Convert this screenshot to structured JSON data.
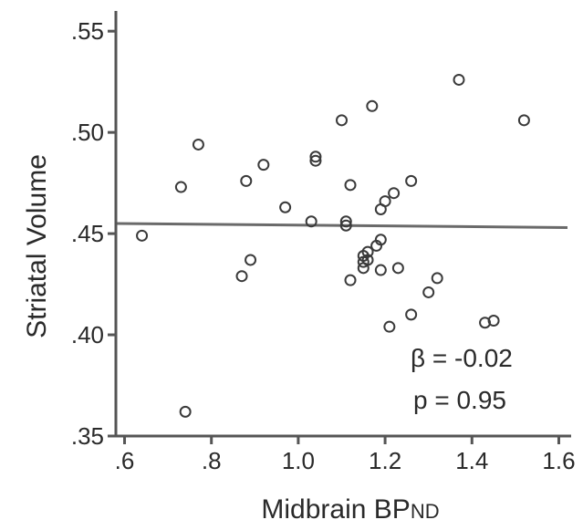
{
  "chart_data": {
    "type": "scatter",
    "title": "",
    "xlabel": "Midbrain BP",
    "xlabel_subscript": "ND",
    "ylabel": "Striatal Volume",
    "xlim": [
      0.58,
      1.62
    ],
    "ylim": [
      0.35,
      0.56
    ],
    "xticks": [
      0.6,
      0.8,
      1.0,
      1.2,
      1.4,
      1.6
    ],
    "xtick_labels": [
      ".6",
      ".8",
      "1.0",
      "1.2",
      "1.4",
      "1.6"
    ],
    "yticks": [
      0.35,
      0.4,
      0.45,
      0.5,
      0.55
    ],
    "ytick_labels": [
      ".35",
      ".40",
      ".45",
      ".50",
      ".55"
    ],
    "grid": false,
    "colors": {
      "points": "#3a3a3a",
      "axes": "#555555",
      "fit": "#6a6a6a"
    },
    "fit_line": {
      "x": [
        0.58,
        1.62
      ],
      "y": [
        0.455,
        0.453
      ]
    },
    "annotations": {
      "beta": "β = -0.02",
      "p": "p = 0.95"
    },
    "points": [
      {
        "x": 0.64,
        "y": 0.449
      },
      {
        "x": 0.73,
        "y": 0.473
      },
      {
        "x": 0.74,
        "y": 0.362
      },
      {
        "x": 0.77,
        "y": 0.494
      },
      {
        "x": 0.87,
        "y": 0.429
      },
      {
        "x": 0.88,
        "y": 0.476
      },
      {
        "x": 0.89,
        "y": 0.437
      },
      {
        "x": 0.92,
        "y": 0.484
      },
      {
        "x": 0.97,
        "y": 0.463
      },
      {
        "x": 1.03,
        "y": 0.456
      },
      {
        "x": 1.04,
        "y": 0.486
      },
      {
        "x": 1.04,
        "y": 0.488
      },
      {
        "x": 1.1,
        "y": 0.506
      },
      {
        "x": 1.11,
        "y": 0.456
      },
      {
        "x": 1.11,
        "y": 0.454
      },
      {
        "x": 1.12,
        "y": 0.474
      },
      {
        "x": 1.12,
        "y": 0.427
      },
      {
        "x": 1.15,
        "y": 0.433
      },
      {
        "x": 1.15,
        "y": 0.436
      },
      {
        "x": 1.15,
        "y": 0.439
      },
      {
        "x": 1.16,
        "y": 0.437
      },
      {
        "x": 1.16,
        "y": 0.441
      },
      {
        "x": 1.17,
        "y": 0.513
      },
      {
        "x": 1.18,
        "y": 0.444
      },
      {
        "x": 1.19,
        "y": 0.447
      },
      {
        "x": 1.19,
        "y": 0.432
      },
      {
        "x": 1.19,
        "y": 0.462
      },
      {
        "x": 1.2,
        "y": 0.466
      },
      {
        "x": 1.21,
        "y": 0.404
      },
      {
        "x": 1.22,
        "y": 0.47
      },
      {
        "x": 1.23,
        "y": 0.433
      },
      {
        "x": 1.26,
        "y": 0.476
      },
      {
        "x": 1.26,
        "y": 0.41
      },
      {
        "x": 1.3,
        "y": 0.421
      },
      {
        "x": 1.32,
        "y": 0.428
      },
      {
        "x": 1.37,
        "y": 0.526
      },
      {
        "x": 1.43,
        "y": 0.406
      },
      {
        "x": 1.45,
        "y": 0.407
      },
      {
        "x": 1.52,
        "y": 0.506
      }
    ]
  }
}
